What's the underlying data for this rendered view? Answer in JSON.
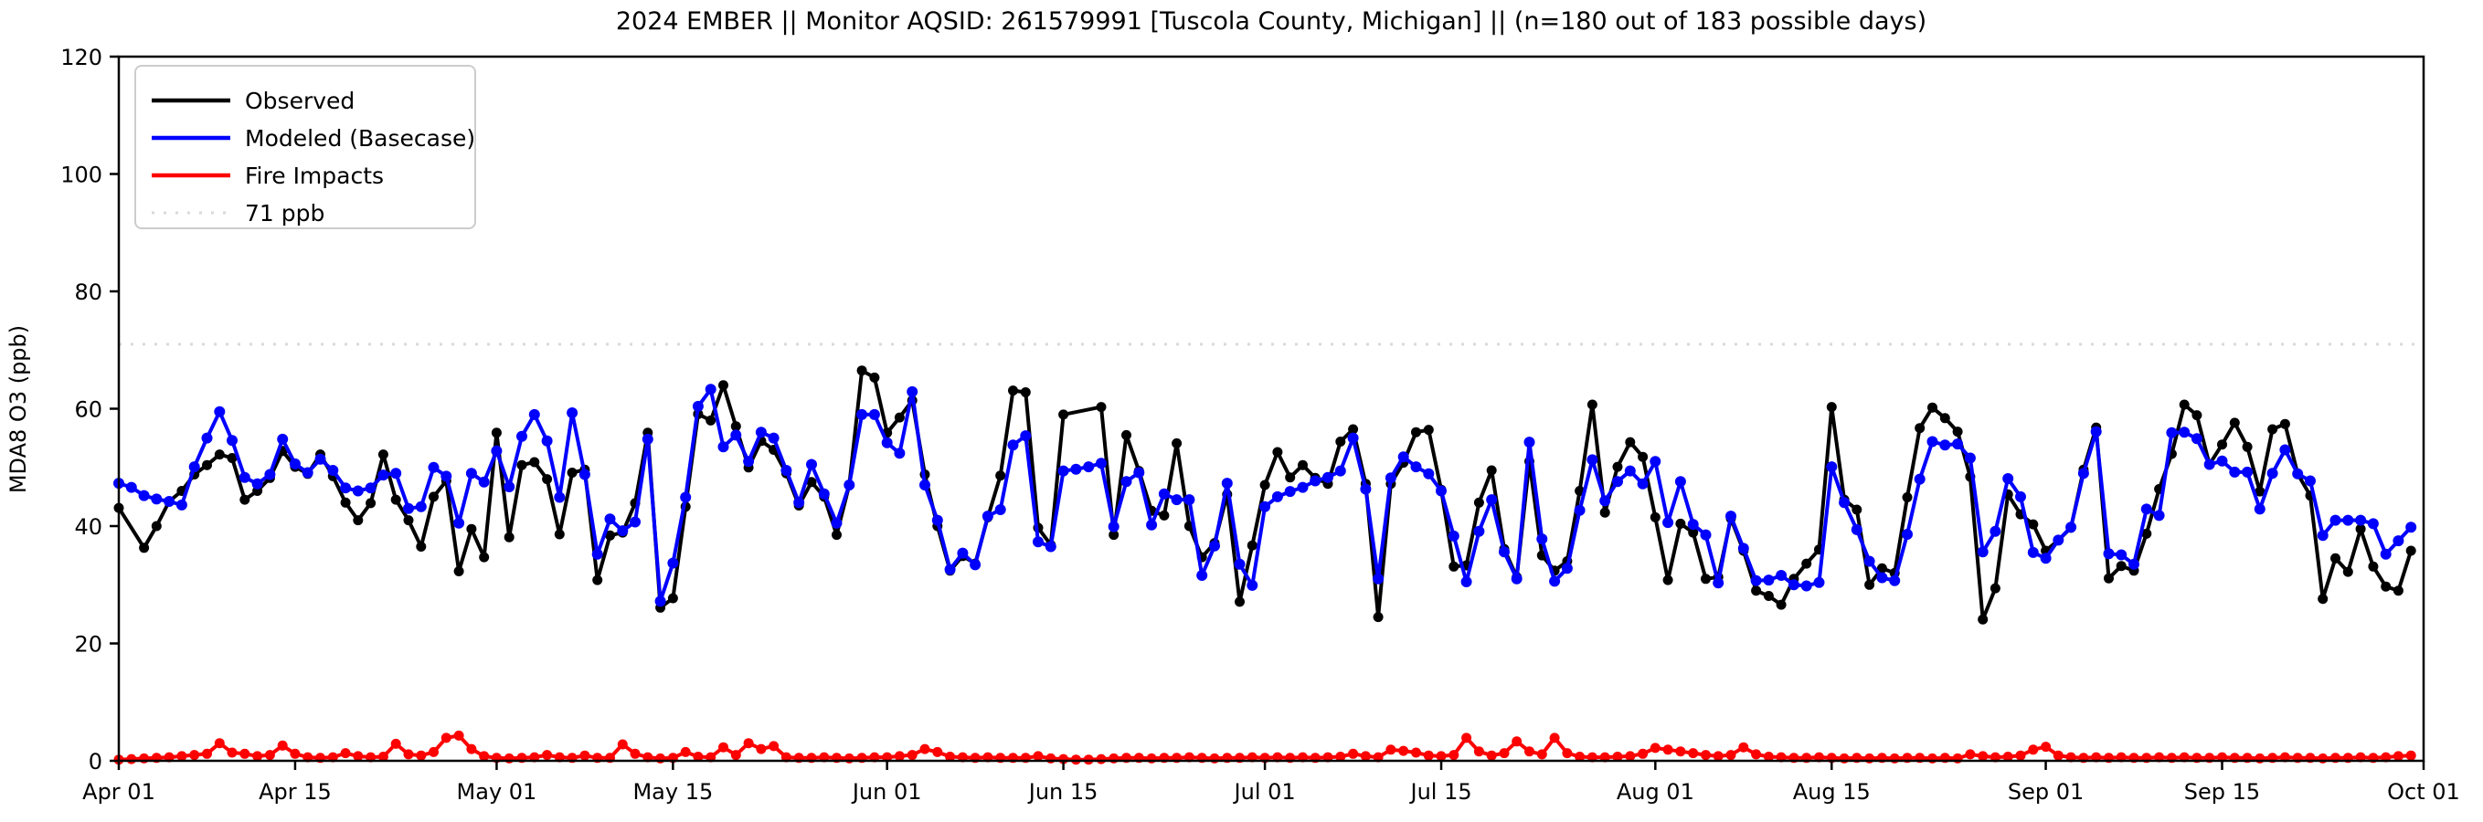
{
  "figure": {
    "title": "2024 EMBER || Monitor AQSID: 261579991 [Tuscola County, Michigan] || (n=180 out of 183 possible days)",
    "ylabel": "MDA8 O3 (ppb)"
  },
  "chart_data": {
    "type": "line",
    "title": "2024 EMBER || Monitor AQSID: 261579991 [Tuscola County, Michigan] || (n=180 out of 183 possible days)",
    "xlabel": "",
    "ylabel": "MDA8 O3 (ppb)",
    "ylim": [
      0,
      120
    ],
    "yticks": [
      0,
      20,
      40,
      60,
      80,
      100,
      120
    ],
    "x_days_total": 183,
    "x_start": "Apr 01",
    "x_end": "Oct 01",
    "grid": false,
    "legend_position": "upper left",
    "xticks": [
      {
        "label": "Apr 01",
        "day": 0
      },
      {
        "label": "Apr 15",
        "day": 14
      },
      {
        "label": "May 01",
        "day": 30
      },
      {
        "label": "May 15",
        "day": 44
      },
      {
        "label": "Jun 01",
        "day": 61
      },
      {
        "label": "Jun 15",
        "day": 75
      },
      {
        "label": "Jul 01",
        "day": 91
      },
      {
        "label": "Jul 15",
        "day": 105
      },
      {
        "label": "Aug 01",
        "day": 122
      },
      {
        "label": "Aug 15",
        "day": 136
      },
      {
        "label": "Sep 01",
        "day": 153
      },
      {
        "label": "Sep 15",
        "day": 167
      },
      {
        "label": "Oct 01",
        "day": 183
      }
    ],
    "reference_line": {
      "label": "71 ppb",
      "value": 71,
      "color": "#d9d9d9",
      "style": "dotted"
    },
    "series": [
      {
        "name": "Observed",
        "color": "#000000",
        "values": [
          43.1,
          null,
          36.3,
          40.0,
          44.2,
          46.0,
          48.8,
          50.4,
          52.2,
          51.6,
          44.5,
          46.0,
          48.2,
          52.8,
          50.1,
          48.9,
          52.2,
          48.5,
          44.0,
          41.0,
          43.9,
          52.2,
          44.5,
          41.0,
          36.5,
          45.0,
          47.7,
          32.3,
          39.5,
          34.7,
          55.9,
          38.1,
          50.4,
          50.9,
          48.0,
          38.6,
          49.1,
          49.6,
          30.8,
          38.4,
          38.9,
          43.9,
          55.9,
          26.1,
          27.7,
          43.3,
          59.1,
          58.0,
          64.0,
          57.0,
          50.0,
          54.5,
          53.0,
          49.0,
          43.5,
          47.5,
          45.0,
          38.5,
          47.0,
          66.5,
          65.3,
          55.9,
          58.5,
          61.4,
          48.8,
          40.0,
          32.4,
          34.9,
          33.6,
          41.5,
          48.6,
          63.1,
          62.8,
          39.7,
          36.8,
          59.0,
          null,
          null,
          60.3,
          38.5,
          55.5,
          49.4,
          42.6,
          41.8,
          54.1,
          40.0,
          34.7,
          37.1,
          45.4,
          27.1,
          36.7,
          47.0,
          52.6,
          48.3,
          50.4,
          48.2,
          47.2,
          54.4,
          56.5,
          47.2,
          24.5,
          47.2,
          50.8,
          56.0,
          56.4,
          46.2,
          33.1,
          33.3,
          44.0,
          49.5,
          36.1,
          31.3,
          51.0,
          35.0,
          32.4,
          34.0,
          46.0,
          60.7,
          42.3,
          50.1,
          54.3,
          51.8,
          41.5,
          30.8,
          40.4,
          38.9,
          31.0,
          31.3,
          41.3,
          35.8,
          29.0,
          28.1,
          26.6,
          31.0,
          33.6,
          36.0,
          60.3,
          44.5,
          42.8,
          30.0,
          32.8,
          32.0,
          44.9,
          56.7,
          60.2,
          58.4,
          56.1,
          48.4,
          24.1,
          29.4,
          45.4,
          42.0,
          40.3,
          35.8,
          37.6,
          39.7,
          49.6,
          56.8,
          31.1,
          33.2,
          32.4,
          38.7,
          46.3,
          52.3,
          60.7,
          58.9,
          50.5,
          53.9,
          57.6,
          53.5,
          45.9,
          56.5,
          57.4,
          48.9,
          45.2,
          27.6,
          34.5,
          32.2,
          39.5,
          33.1,
          29.7,
          29.0,
          35.8
        ]
      },
      {
        "name": "Modeled (Basecase)",
        "color": "#0000ff",
        "values": [
          47.3,
          46.6,
          45.2,
          44.6,
          44.2,
          43.6,
          50.1,
          55.0,
          59.5,
          54.6,
          48.3,
          47.2,
          48.8,
          54.8,
          50.6,
          49.1,
          51.4,
          49.5,
          46.5,
          46.0,
          46.5,
          48.7,
          49.0,
          43.0,
          43.3,
          50.0,
          48.5,
          40.5,
          49.0,
          47.5,
          52.8,
          46.7,
          55.3,
          59.0,
          54.5,
          44.9,
          59.3,
          48.8,
          35.2,
          41.2,
          39.2,
          40.7,
          54.8,
          27.2,
          33.7,
          44.9,
          60.4,
          63.3,
          53.5,
          55.5,
          51.0,
          56.0,
          55.0,
          49.5,
          44.0,
          50.5,
          45.5,
          40.5,
          47.0,
          59.0,
          59.0,
          54.2,
          52.4,
          62.9,
          47.0,
          41.0,
          32.6,
          35.4,
          33.4,
          41.7,
          42.8,
          53.8,
          55.4,
          37.3,
          36.5,
          49.4,
          49.7,
          50.1,
          50.7,
          39.9,
          47.6,
          49.1,
          40.2,
          45.5,
          44.5,
          44.5,
          31.6,
          36.6,
          47.3,
          33.5,
          29.9,
          43.3,
          45.0,
          45.9,
          46.6,
          47.7,
          48.3,
          49.4,
          55.0,
          46.3,
          31.0,
          48.2,
          51.8,
          50.1,
          48.9,
          46.0,
          38.3,
          30.5,
          39.1,
          44.5,
          35.6,
          31.0,
          54.3,
          37.8,
          30.6,
          32.8,
          42.7,
          51.3,
          44.3,
          47.6,
          49.4,
          47.2,
          51.0,
          40.6,
          47.6,
          40.3,
          38.5,
          30.3,
          41.7,
          36.2,
          30.7,
          30.8,
          31.6,
          30.0,
          29.8,
          30.4,
          50.1,
          44.0,
          39.4,
          34.0,
          31.2,
          30.7,
          38.6,
          48.0,
          54.4,
          53.8,
          54.0,
          51.6,
          35.6,
          39.1,
          48.1,
          45.0,
          35.5,
          34.5,
          37.6,
          39.8,
          49.0,
          56.1,
          35.3,
          35.1,
          33.5,
          42.9,
          41.8,
          55.9,
          56.0,
          54.9,
          50.5,
          51.1,
          49.2,
          49.2,
          42.9,
          49.0,
          53.0,
          48.9,
          47.7,
          38.4,
          41.0,
          41.0,
          41.0,
          40.4,
          35.2,
          37.5,
          39.8
        ]
      },
      {
        "name": "Fire Impacts",
        "color": "#ff0000",
        "values": [
          0.2,
          0.3,
          0.4,
          0.5,
          0.6,
          0.8,
          1.0,
          1.2,
          3.0,
          1.4,
          1.2,
          0.8,
          1.0,
          2.6,
          1.2,
          0.6,
          0.5,
          0.6,
          1.3,
          0.8,
          0.6,
          0.7,
          2.9,
          1.1,
          0.9,
          1.5,
          3.9,
          4.3,
          2.0,
          0.8,
          0.5,
          0.4,
          0.5,
          0.6,
          1.0,
          0.6,
          0.5,
          0.9,
          0.5,
          0.5,
          2.8,
          1.2,
          0.6,
          0.4,
          0.5,
          1.5,
          0.7,
          0.6,
          2.3,
          1.0,
          3.0,
          2.0,
          2.5,
          0.6,
          0.5,
          0.5,
          0.6,
          0.5,
          0.4,
          0.5,
          0.6,
          0.6,
          0.8,
          1.0,
          2.0,
          1.5,
          0.7,
          0.6,
          0.5,
          0.6,
          0.5,
          0.5,
          0.5,
          0.8,
          0.4,
          0.3,
          0.2,
          0.2,
          0.3,
          0.4,
          0.5,
          0.5,
          0.4,
          0.5,
          0.5,
          0.6,
          0.5,
          0.4,
          0.5,
          0.5,
          0.6,
          0.5,
          0.6,
          0.5,
          0.6,
          0.5,
          0.6,
          0.7,
          1.2,
          0.8,
          0.6,
          1.9,
          1.7,
          1.4,
          0.9,
          0.8,
          1.0,
          3.9,
          1.6,
          0.9,
          1.3,
          3.3,
          1.6,
          1.1,
          3.9,
          1.3,
          0.7,
          0.6,
          0.6,
          0.7,
          0.8,
          1.2,
          2.2,
          1.9,
          1.6,
          1.3,
          1.0,
          0.8,
          1.0,
          2.3,
          1.1,
          0.7,
          0.6,
          0.5,
          0.5,
          0.6,
          0.5,
          0.4,
          0.5,
          0.4,
          0.5,
          0.4,
          0.5,
          0.5,
          0.4,
          0.5,
          0.4,
          1.1,
          0.8,
          0.6,
          0.7,
          0.9,
          1.9,
          2.4,
          0.9,
          0.6,
          0.5,
          0.6,
          0.5,
          0.6,
          0.5,
          0.5,
          0.6,
          0.5,
          0.6,
          0.5,
          0.5,
          0.6,
          0.5,
          0.5,
          0.4,
          0.5,
          0.6,
          0.5,
          0.5,
          0.4,
          0.5,
          0.5,
          0.6,
          0.5,
          0.6,
          0.8,
          0.9
        ]
      }
    ],
    "legend": [
      "Observed",
      "Modeled (Basecase)",
      "Fire Impacts",
      "71 ppb"
    ]
  }
}
